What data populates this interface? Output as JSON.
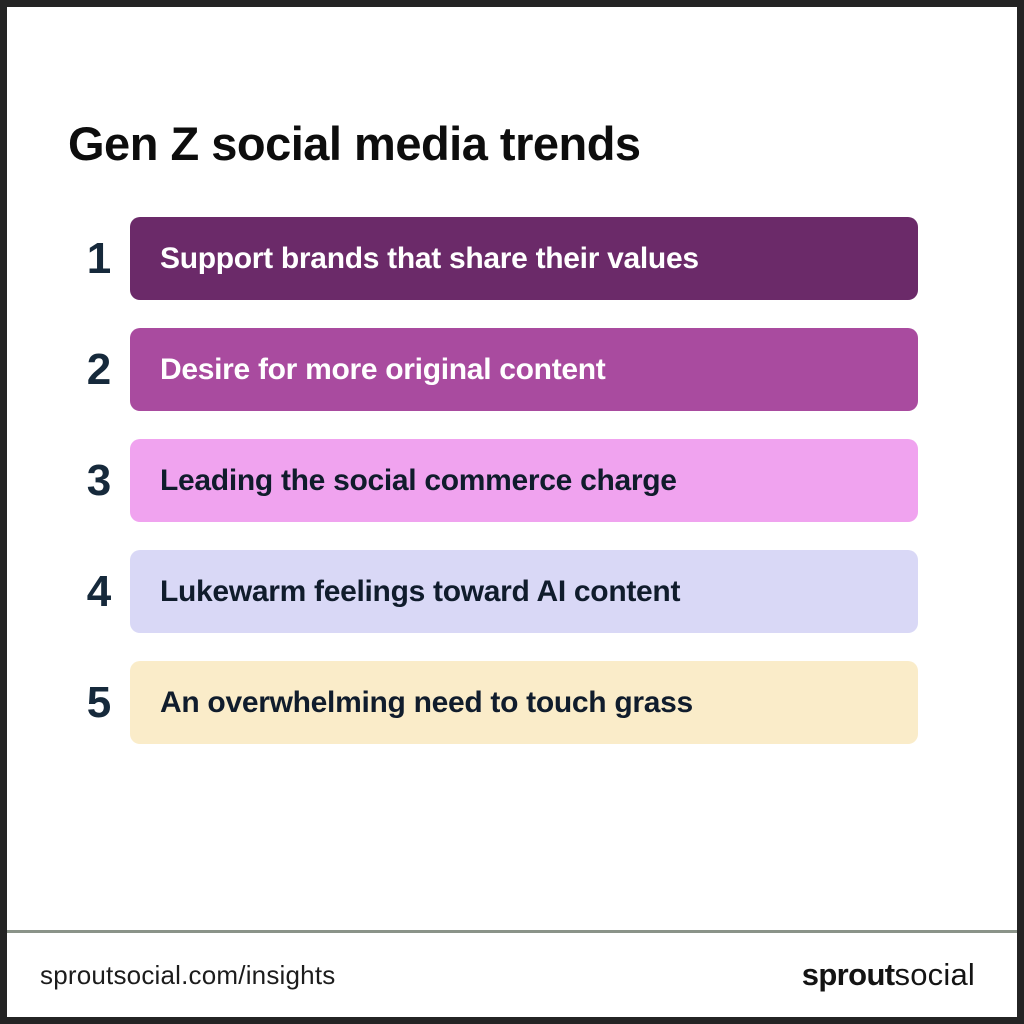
{
  "title": "Gen Z social media trends",
  "items": [
    {
      "rank": "1",
      "label": "Support brands that share their values",
      "bar_color": "#6B2A69",
      "text_color": "#FFFFFF"
    },
    {
      "rank": "2",
      "label": "Desire for more original content",
      "bar_color": "#A94B9F",
      "text_color": "#FFFFFF"
    },
    {
      "rank": "3",
      "label": "Leading the social commerce charge",
      "bar_color": "#F0A3EF",
      "text_color": "#101C2C"
    },
    {
      "rank": "4",
      "label": "Lukewarm feelings toward AI content",
      "bar_color": "#D9D8F6",
      "text_color": "#101C2C"
    },
    {
      "rank": "5",
      "label": "An overwhelming need to touch grass",
      "bar_color": "#FAECC9",
      "text_color": "#101C2C"
    }
  ],
  "footer": {
    "url": "sproutsocial.com/insights",
    "logo_bold": "sprout",
    "logo_light": "social"
  },
  "colors": {
    "frame_border": "#242424",
    "background": "#FFFFFF",
    "title_text": "#0D0D0D",
    "rank_number": "#16293B",
    "divider": "#8A9389",
    "footer_text": "#1C1C1C",
    "logo_text": "#141414"
  }
}
